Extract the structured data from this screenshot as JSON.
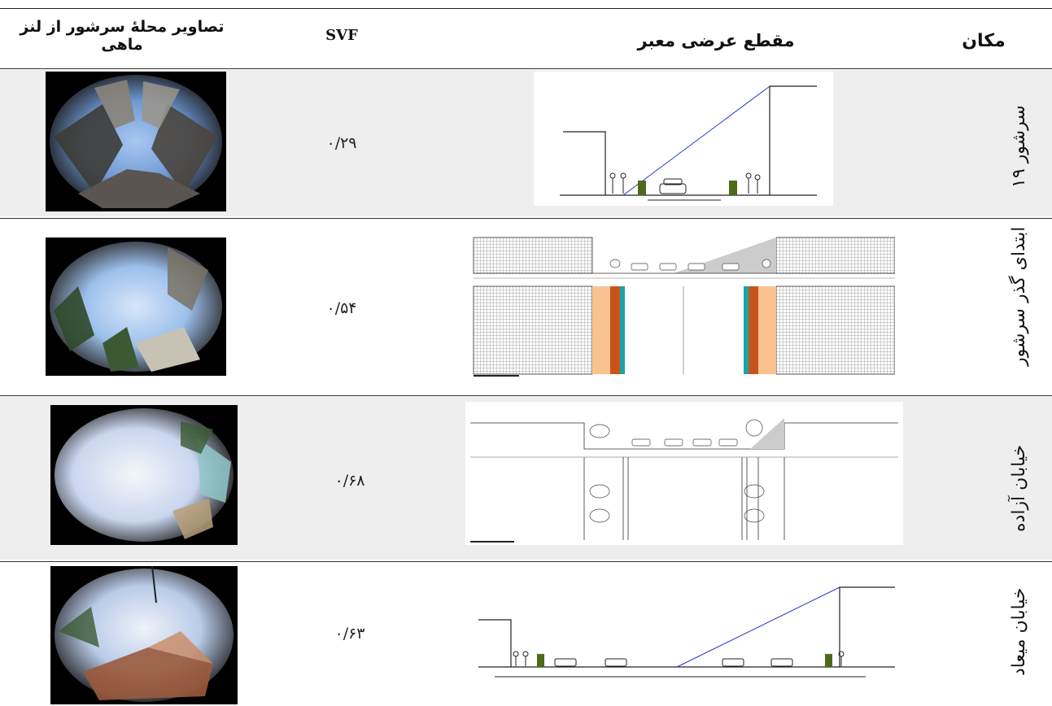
{
  "headers": {
    "place": "مکان",
    "section": "مقطع عرضی معبر",
    "svf": "SVF",
    "photo": "تصاویر محلهٔ سرشور از لنز ماهی"
  },
  "rows": [
    {
      "place": "سرشور ۱۹",
      "svf": "۰/۲۹"
    },
    {
      "place": "ابتدای گذر سرشور",
      "svf": "۰/۵۴"
    },
    {
      "place": "خیابان آزاده",
      "svf": "۰/۶۸"
    },
    {
      "place": "خیابان میعاد",
      "svf": "۰/۶۳"
    }
  ],
  "colors": {
    "row_shade": "#eeeeee",
    "sky_line": "#2233cc",
    "bin_green": "#4a6b1a",
    "sidewalk_orange": "#f9c28f",
    "planter_brown": "#c8531a",
    "curb_teal": "#1aa3a8",
    "sky_blue": "#8fb4e8"
  },
  "icons": [
    "fisheye-photo",
    "street-section-drawing",
    "car-icon",
    "pedestrian-icon",
    "tree-icon",
    "trash-bin-icon"
  ]
}
